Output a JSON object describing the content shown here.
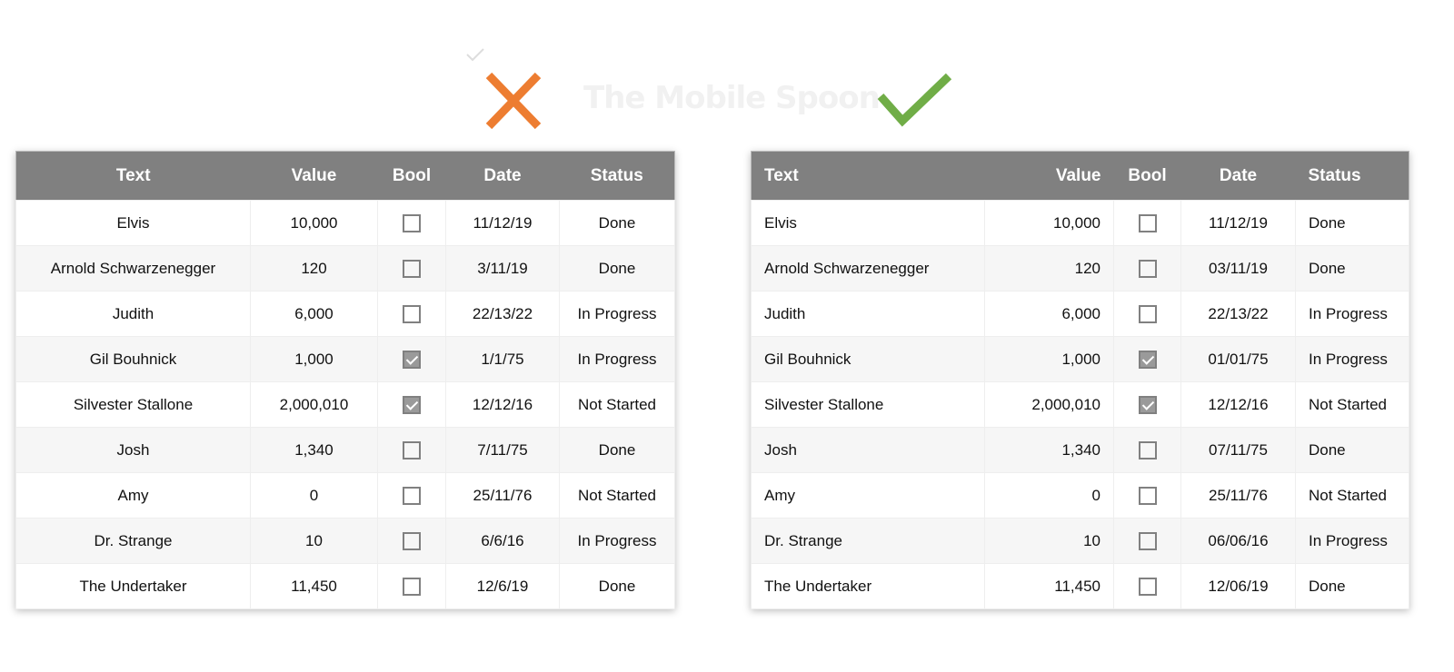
{
  "brand": "The Mobile Spoon",
  "icons": {
    "bad": "x-mark-icon",
    "good": "check-mark-icon",
    "bad_color": "#ed7d31",
    "good_color": "#70ad47"
  },
  "headers": [
    "Text",
    "Value",
    "Bool",
    "Date",
    "Status"
  ],
  "bad_table": {
    "rows": [
      [
        "Elvis",
        "10,000",
        false,
        "11/12/19",
        "Done"
      ],
      [
        "Arnold Schwarzenegger",
        "120",
        false,
        "3/11/19",
        "Done"
      ],
      [
        "Judith",
        "6,000",
        false,
        "22/13/22",
        "In Progress"
      ],
      [
        "Gil Bouhnick",
        "1,000",
        true,
        "1/1/75",
        "In Progress"
      ],
      [
        "Silvester Stallone",
        "2,000,010",
        true,
        "12/12/16",
        "Not Started"
      ],
      [
        "Josh",
        "1,340",
        false,
        "7/11/75",
        "Done"
      ],
      [
        "Amy",
        "0",
        false,
        "25/11/76",
        "Not Started"
      ],
      [
        "Dr. Strange",
        "10",
        false,
        "6/6/16",
        "In Progress"
      ],
      [
        "The Undertaker",
        "11,450",
        false,
        "12/6/19",
        "Done"
      ]
    ]
  },
  "good_table": {
    "rows": [
      [
        "Elvis",
        "10,000",
        false,
        "11/12/19",
        "Done"
      ],
      [
        "Arnold Schwarzenegger",
        "120",
        false,
        "03/11/19",
        "Done"
      ],
      [
        "Judith",
        "6,000",
        false,
        "22/13/22",
        "In Progress"
      ],
      [
        "Gil Bouhnick",
        "1,000",
        true,
        "01/01/75",
        "In Progress"
      ],
      [
        "Silvester Stallone",
        "2,000,010",
        true,
        "12/12/16",
        "Not Started"
      ],
      [
        "Josh",
        "1,340",
        false,
        "07/11/75",
        "Done"
      ],
      [
        "Amy",
        "0",
        false,
        "25/11/76",
        "Not Started"
      ],
      [
        "Dr. Strange",
        "10",
        false,
        "06/06/16",
        "In Progress"
      ],
      [
        "The Undertaker",
        "11,450",
        false,
        "12/06/19",
        "Done"
      ]
    ]
  }
}
